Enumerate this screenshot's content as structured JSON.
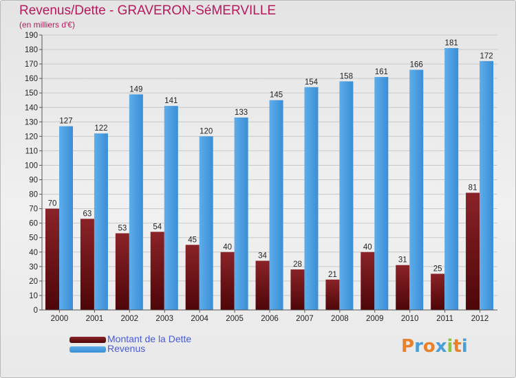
{
  "title": "Revenus/Dette - GRAVERON-SéMERVILLE",
  "subtitle": "(en milliers d'€)",
  "colors": {
    "title": "#b5195b",
    "dette": "#6b0f12",
    "revenus": "#3d95dc",
    "legend_text": "#4a5bd9"
  },
  "logo": {
    "text": "Proxiti",
    "letter_colors": [
      "#e8812a",
      "#4a9fd8",
      "#e8812a",
      "#4a9fd8",
      "#8cc63e",
      "#e8812a",
      "#4a9fd8"
    ]
  },
  "chart_data": {
    "type": "bar",
    "title": "Revenus/Dette - GRAVERON-SéMERVILLE",
    "subtitle": "(en milliers d'€)",
    "categories": [
      "2000",
      "2001",
      "2002",
      "2003",
      "2004",
      "2005",
      "2006",
      "2007",
      "2008",
      "2009",
      "2010",
      "2011",
      "2012"
    ],
    "series": [
      {
        "name": "Montant de la Dette",
        "color": "#6b0f12",
        "values": [
          70,
          63,
          53,
          54,
          45,
          40,
          34,
          28,
          21,
          40,
          31,
          25,
          81
        ]
      },
      {
        "name": "Revenus",
        "color": "#3d95dc",
        "values": [
          127,
          122,
          149,
          141,
          120,
          133,
          145,
          154,
          158,
          161,
          166,
          181,
          172
        ]
      }
    ],
    "ylim": [
      0,
      190
    ],
    "yticks": [
      0,
      10,
      20,
      30,
      40,
      50,
      60,
      70,
      80,
      90,
      100,
      110,
      120,
      130,
      140,
      150,
      160,
      170,
      180,
      190
    ],
    "grid": true,
    "legend": "bottom-left"
  }
}
